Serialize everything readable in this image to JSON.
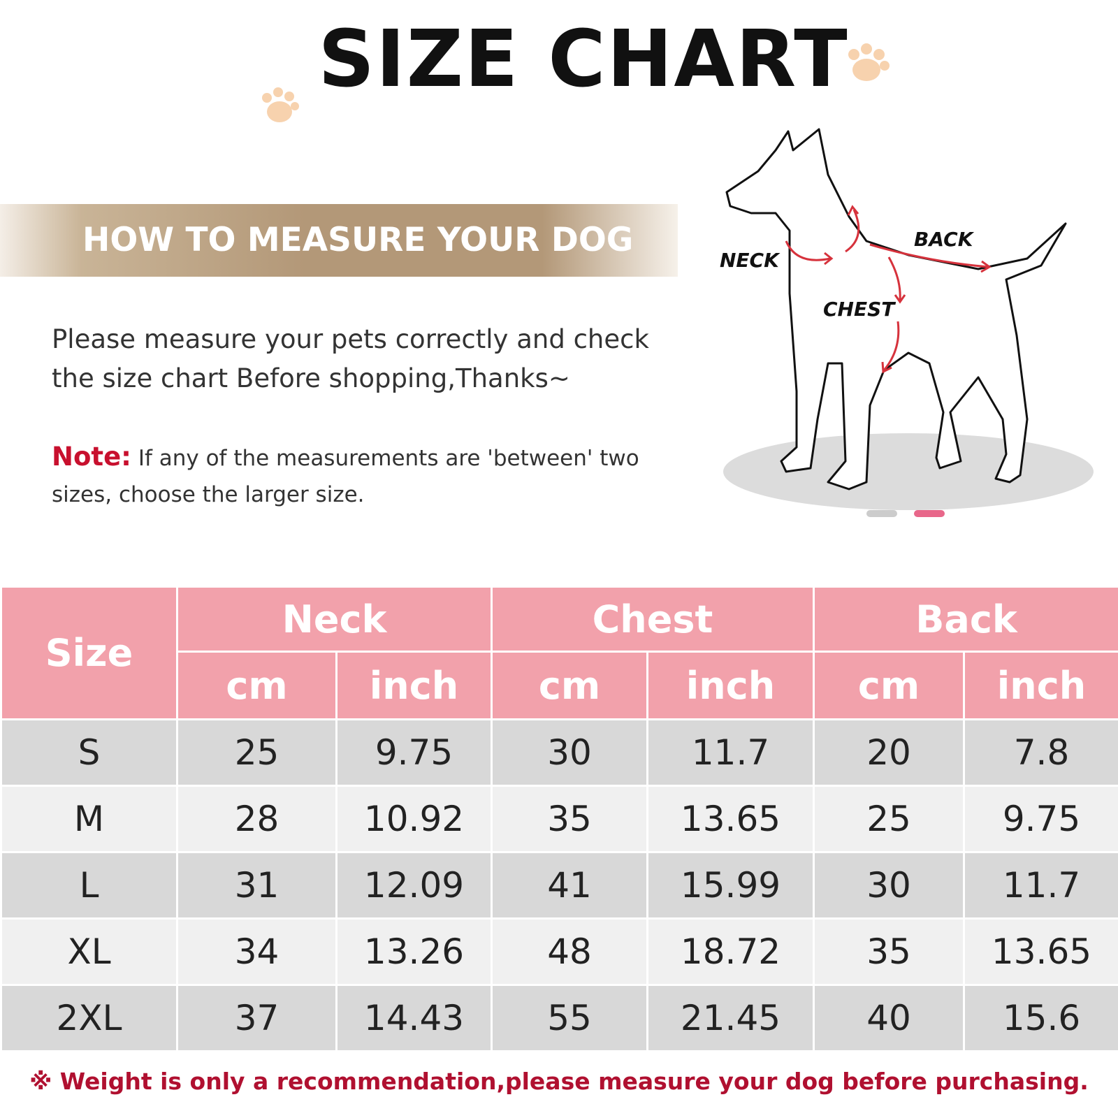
{
  "title": "SIZE CHART",
  "banner": "HOW TO MEASURE YOUR DOG",
  "intro": "Please measure your pets correctly and check the size chart Before shopping,Thanks~",
  "note": {
    "label": "Note:",
    "text": "If any of the measurements are 'between' two sizes, choose the larger size."
  },
  "diagram": {
    "labels": [
      "NECK",
      "BACK",
      "CHEST"
    ]
  },
  "table": {
    "header": {
      "size": "Size",
      "groups": [
        "Neck",
        "Chest",
        "Back"
      ],
      "units": [
        "cm",
        "inch",
        "cm",
        "inch",
        "cm",
        "inch"
      ]
    },
    "rows": [
      [
        "S",
        "25",
        "9.75",
        "30",
        "11.7",
        "20",
        "7.8"
      ],
      [
        "M",
        "28",
        "10.92",
        "35",
        "13.65",
        "25",
        "9.75"
      ],
      [
        "L",
        "31",
        "12.09",
        "41",
        "15.99",
        "30",
        "11.7"
      ],
      [
        "XL",
        "34",
        "13.26",
        "48",
        "18.72",
        "35",
        "13.65"
      ],
      [
        "2XL",
        "37",
        "14.43",
        "55",
        "21.45",
        "40",
        "15.6"
      ]
    ]
  },
  "footer": "※ Weight is only a recommendation,please measure your dog before purchasing."
}
